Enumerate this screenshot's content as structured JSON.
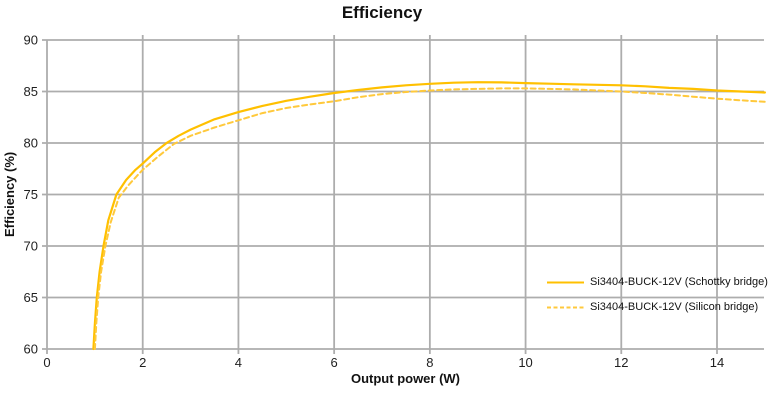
{
  "chart_data": {
    "type": "line",
    "title": "Efficiency",
    "xlabel": "Output power (W)",
    "ylabel": "Efficiency (%)",
    "xlim": [
      0,
      15
    ],
    "ylim": [
      60,
      90
    ],
    "xticks": [
      0,
      2,
      4,
      6,
      8,
      10,
      12,
      14
    ],
    "yticks": [
      60,
      65,
      70,
      75,
      80,
      85,
      90
    ],
    "grid": true,
    "legend_position": "inside lower right",
    "colors": {
      "grid": "#ADADAD",
      "axis": "#ADADAD",
      "tick_text": "#1f1f1f",
      "title_text": "#111111"
    },
    "series": [
      {
        "name": "Si3404-BUCK-12V (Schottky bridge)",
        "color": "#FFC000",
        "style": "solid",
        "points": [
          [
            0.97,
            60
          ],
          [
            1.0,
            62.5
          ],
          [
            1.04,
            65
          ],
          [
            1.1,
            67.5
          ],
          [
            1.18,
            70
          ],
          [
            1.28,
            72.5
          ],
          [
            1.45,
            75
          ],
          [
            1.65,
            76.4
          ],
          [
            1.85,
            77.4
          ],
          [
            2.0,
            78.0
          ],
          [
            2.25,
            79.1
          ],
          [
            2.5,
            80.0
          ],
          [
            2.75,
            80.7
          ],
          [
            3.0,
            81.3
          ],
          [
            3.5,
            82.3
          ],
          [
            4.0,
            83.0
          ],
          [
            4.5,
            83.6
          ],
          [
            5.0,
            84.1
          ],
          [
            5.5,
            84.5
          ],
          [
            6.0,
            84.85
          ],
          [
            6.5,
            85.15
          ],
          [
            7.0,
            85.4
          ],
          [
            7.5,
            85.6
          ],
          [
            8.0,
            85.75
          ],
          [
            8.5,
            85.85
          ],
          [
            9.0,
            85.9
          ],
          [
            9.5,
            85.88
          ],
          [
            10.0,
            85.82
          ],
          [
            10.5,
            85.76
          ],
          [
            11.0,
            85.7
          ],
          [
            11.5,
            85.65
          ],
          [
            12.0,
            85.6
          ],
          [
            12.5,
            85.5
          ],
          [
            13.0,
            85.35
          ],
          [
            13.5,
            85.25
          ],
          [
            14.0,
            85.1
          ],
          [
            14.5,
            85.0
          ],
          [
            15.0,
            84.9
          ]
        ]
      },
      {
        "name": "Si3404-BUCK-12V (Silicon bridge)",
        "color": "#FFC93C",
        "style": "dashed",
        "points": [
          [
            1.0,
            60
          ],
          [
            1.03,
            62.5
          ],
          [
            1.07,
            65
          ],
          [
            1.13,
            67.5
          ],
          [
            1.22,
            70
          ],
          [
            1.33,
            72.3
          ],
          [
            1.5,
            74.7
          ],
          [
            1.7,
            75.9
          ],
          [
            1.9,
            76.9
          ],
          [
            2.0,
            77.4
          ],
          [
            2.3,
            78.6
          ],
          [
            2.65,
            79.9
          ],
          [
            3.0,
            80.7
          ],
          [
            3.5,
            81.5
          ],
          [
            4.0,
            82.2
          ],
          [
            4.5,
            82.9
          ],
          [
            5.0,
            83.4
          ],
          [
            5.5,
            83.75
          ],
          [
            6.0,
            84.05
          ],
          [
            6.5,
            84.45
          ],
          [
            7.0,
            84.75
          ],
          [
            7.5,
            84.95
          ],
          [
            8.0,
            85.1
          ],
          [
            8.5,
            85.2
          ],
          [
            9.0,
            85.25
          ],
          [
            9.5,
            85.3
          ],
          [
            10.0,
            85.3
          ],
          [
            10.5,
            85.25
          ],
          [
            11.0,
            85.2
          ],
          [
            11.5,
            85.1
          ],
          [
            12.0,
            85.0
          ],
          [
            12.5,
            84.85
          ],
          [
            13.0,
            84.7
          ],
          [
            13.5,
            84.5
          ],
          [
            14.0,
            84.3
          ],
          [
            14.5,
            84.15
          ],
          [
            15.0,
            84.0
          ]
        ]
      }
    ]
  }
}
